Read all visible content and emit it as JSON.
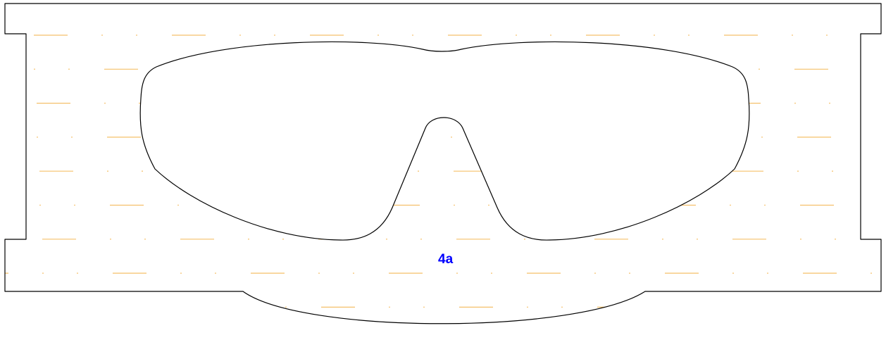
{
  "part": {
    "label": "4a",
    "label_color": "#0000ff"
  },
  "colors": {
    "outline": "#000000",
    "hatch": "#f5c06a",
    "background": "#ffffff"
  },
  "hatch_style": "dashed-orange-lines"
}
